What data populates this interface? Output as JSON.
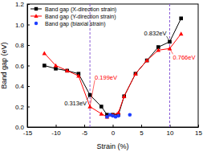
{
  "chart_data": {
    "type": "line",
    "x_label": "Strain (%)",
    "y_label": "Band gap (eV)",
    "xlim": [
      -15,
      15
    ],
    "xticks": [
      -15,
      -10,
      -5,
      0,
      5,
      10,
      15
    ],
    "ylim": [
      0,
      1.2
    ],
    "yticks": [
      {
        "value": 0,
        "label": "0.0"
      },
      0.2,
      0.4,
      0.6,
      0.8,
      {
        "value": 1,
        "label": "1.0"
      },
      1.2
    ],
    "legend": "upper-left",
    "series": [
      {
        "name": "Band gap (X-direction strain)",
        "color": "#000000",
        "marker": "square",
        "line_style": "solid",
        "x": [
          -12,
          -10,
          -8,
          -6,
          -4,
          -2,
          -1,
          0,
          1,
          2,
          4,
          6,
          8,
          10,
          12
        ],
        "values": [
          0.6,
          0.57,
          0.55,
          0.52,
          0.313,
          0.2,
          0.12,
          0.12,
          0.12,
          0.3,
          0.52,
          0.65,
          0.78,
          0.832,
          1.06
        ]
      },
      {
        "name": "Band gap (Y-direction strain)",
        "color": "#ff0000",
        "marker": "triangle",
        "line_style": "solid",
        "x": [
          -12,
          -10,
          -8,
          -6,
          -4,
          -2,
          -1,
          0,
          1,
          2,
          4,
          6,
          8,
          10,
          12
        ],
        "values": [
          0.72,
          0.6,
          0.55,
          0.5,
          0.199,
          0.13,
          0.1,
          0.12,
          0.14,
          0.3,
          0.52,
          0.65,
          0.75,
          0.766,
          0.91
        ]
      },
      {
        "name": "Band gap (biaxial strain)",
        "color": "#1f3fff",
        "marker": "circle",
        "line_style": "none",
        "x": [
          -1,
          -0.5,
          0,
          0.5,
          1,
          3
        ],
        "values": [
          0.1,
          0.12,
          0.11,
          0.1,
          0.11,
          0.12
        ]
      }
    ],
    "vlines": [
      -4,
      10
    ],
    "annotations": [
      {
        "text": "0.313eV",
        "color": "#000000",
        "x": -4,
        "y": 0.313
      },
      {
        "text": "0.199eV",
        "color": "#ff0000",
        "x": -4,
        "y": 0.199
      },
      {
        "text": "0.832eV",
        "color": "#000000",
        "x": 10,
        "y": 0.832
      },
      {
        "text": "0.766eV",
        "color": "#ff0000",
        "x": 10,
        "y": 0.766
      }
    ]
  }
}
